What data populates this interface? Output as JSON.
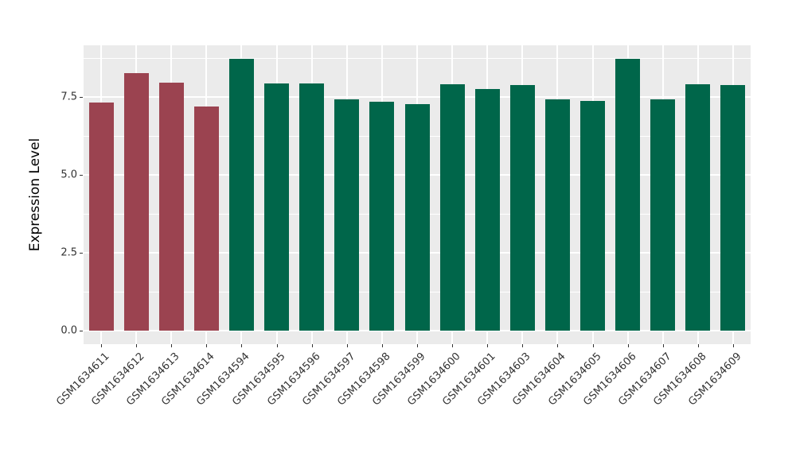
{
  "chart_data": {
    "type": "bar",
    "title": "",
    "xlabel": "",
    "ylabel": "Expression Level",
    "categories": [
      "GSM1634611",
      "GSM1634612",
      "GSM1634613",
      "GSM1634614",
      "GSM1634594",
      "GSM1634595",
      "GSM1634596",
      "GSM1634597",
      "GSM1634598",
      "GSM1634599",
      "GSM1634600",
      "GSM1634601",
      "GSM1634603",
      "GSM1634604",
      "GSM1634605",
      "GSM1634606",
      "GSM1634607",
      "GSM1634608",
      "GSM1634609"
    ],
    "values": [
      7.32,
      8.26,
      7.95,
      7.19,
      8.72,
      7.93,
      7.93,
      7.42,
      7.35,
      7.27,
      7.91,
      7.75,
      7.88,
      7.42,
      7.37,
      8.72,
      7.42,
      7.9,
      7.88
    ],
    "bar_colors": [
      "#9B4350",
      "#9B4350",
      "#9B4350",
      "#9B4350",
      "#00664A",
      "#00664A",
      "#00664A",
      "#00664A",
      "#00664A",
      "#00664A",
      "#00664A",
      "#00664A",
      "#00664A",
      "#00664A",
      "#00664A",
      "#00664A",
      "#00664A",
      "#00664A",
      "#00664A"
    ],
    "group_colors": {
      "group1": "#9B4350",
      "group2": "#00664A"
    },
    "ylim": [
      0,
      9.16
    ],
    "ytick_labels": [
      "0.0",
      "2.5",
      "5.0",
      "7.5"
    ],
    "ytick_values": [
      0,
      2.5,
      5.0,
      7.5
    ],
    "minor_gridline_values": [
      1.25,
      3.75,
      6.25,
      8.75
    ],
    "grid": true,
    "legend_position": "none",
    "panel_background": "#EBEBEB",
    "gridline_color": "#FFFFFF",
    "tick_color": "#333333",
    "x_labels_rotation_deg": 45
  }
}
